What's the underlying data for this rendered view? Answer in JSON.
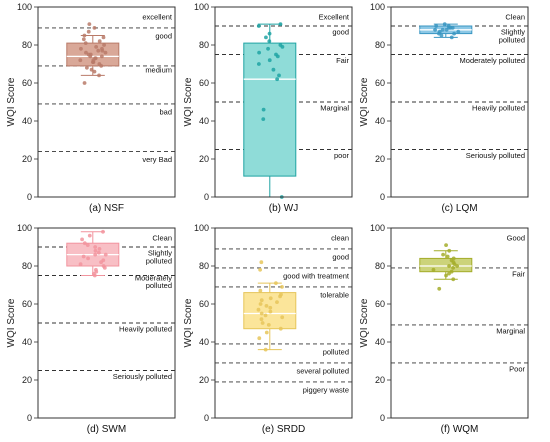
{
  "chart_data": [
    {
      "type": "box",
      "panel_label": "(a) NSF",
      "ylabel": "WQI Score",
      "ylim": [
        0,
        100
      ],
      "yticks": [
        0,
        20,
        40,
        60,
        80,
        100
      ],
      "color": "#b97a68",
      "fill": "#d9a898",
      "box": {
        "whisker_low": 64,
        "q1": 69,
        "median": 74,
        "q3": 81,
        "whisker_high": 85
      },
      "points": [
        60,
        64,
        66,
        67,
        68,
        69,
        70,
        71,
        71,
        72,
        72,
        73,
        73,
        74,
        74,
        75,
        75,
        76,
        76,
        77,
        77,
        78,
        78,
        79,
        80,
        81,
        82,
        83,
        84,
        85,
        87,
        89,
        91
      ],
      "thresholds": [
        89,
        69,
        49,
        24
      ],
      "bands": [
        {
          "label": "excellent",
          "y": 95
        },
        {
          "label": "good",
          "y": 85
        },
        {
          "label": "medium",
          "y": 67
        },
        {
          "label": "bad",
          "y": 45
        },
        {
          "label": "very Bad",
          "y": 20
        }
      ]
    },
    {
      "type": "box",
      "panel_label": "(b) WJ",
      "ylabel": "WQI Score",
      "ylim": [
        0,
        100
      ],
      "yticks": [
        0,
        20,
        40,
        60,
        80,
        100
      ],
      "color": "#1fa3a3",
      "fill": "#8fdcd8",
      "box": {
        "whisker_low": 0,
        "q1": 11,
        "median": 62,
        "q3": 81,
        "whisker_high": 91
      },
      "points": [
        0,
        41,
        46,
        62,
        64,
        67,
        70,
        72,
        74,
        75,
        76,
        78,
        79,
        80,
        82,
        84,
        86,
        90,
        91
      ],
      "thresholds": [
        90,
        75,
        50,
        25
      ],
      "bands": [
        {
          "label": "Excellent",
          "y": 95
        },
        {
          "label": "good",
          "y": 87
        },
        {
          "label": "Fair",
          "y": 72
        },
        {
          "label": "Marginal",
          "y": 47
        },
        {
          "label": "poor",
          "y": 22
        }
      ]
    },
    {
      "type": "box",
      "panel_label": "(c) LQM",
      "ylabel": "WQI Score",
      "ylim": [
        0,
        100
      ],
      "yticks": [
        0,
        20,
        40,
        60,
        80,
        100
      ],
      "color": "#3a96c2",
      "fill": "#8cc8e6",
      "box": {
        "whisker_low": 84,
        "q1": 86,
        "median": 88,
        "q3": 90,
        "whisker_high": 91
      },
      "points": [
        84,
        85,
        86,
        86,
        87,
        87,
        88,
        88,
        88,
        89,
        89,
        89,
        90,
        90,
        91
      ],
      "thresholds": [
        90,
        75,
        50,
        25
      ],
      "bands": [
        {
          "label": "Clean",
          "y": 95
        },
        {
          "label": "Slightly",
          "y": 87
        },
        {
          "label": "polluted",
          "y": 83
        },
        {
          "label": "Moderately polluted",
          "y": 72
        },
        {
          "label": "Heavily polluted",
          "y": 47
        },
        {
          "label": "Seriously polluted",
          "y": 22
        }
      ]
    },
    {
      "type": "box",
      "panel_label": "(d) SWM",
      "ylabel": "WQI Score",
      "ylim": [
        0,
        100
      ],
      "yticks": [
        0,
        20,
        40,
        60,
        80,
        100
      ],
      "color": "#f2949e",
      "fill": "#f8bfc5",
      "box": {
        "whisker_low": 75,
        "q1": 80,
        "median": 86,
        "q3": 92,
        "whisker_high": 98
      },
      "points": [
        75,
        76,
        77,
        78,
        79,
        80,
        81,
        82,
        83,
        84,
        85,
        86,
        86,
        87,
        88,
        89,
        90,
        91,
        92,
        94,
        96,
        98
      ],
      "thresholds": [
        90,
        75,
        50,
        25
      ],
      "bands": [
        {
          "label": "Clean",
          "y": 95
        },
        {
          "label": "Slightly",
          "y": 87
        },
        {
          "label": "polluted",
          "y": 83
        },
        {
          "label": "Moderately",
          "y": 74
        },
        {
          "label": "polluted",
          "y": 70
        },
        {
          "label": "Heavily polluted",
          "y": 47
        },
        {
          "label": "Seriously polluted",
          "y": 22
        }
      ]
    },
    {
      "type": "box",
      "panel_label": "(e) SRDD",
      "ylabel": "WQI Score",
      "ylim": [
        0,
        100
      ],
      "yticks": [
        0,
        20,
        40,
        60,
        80,
        100
      ],
      "color": "#e6c55a",
      "fill": "#fbe59a",
      "box": {
        "whisker_low": 36,
        "q1": 47,
        "median": 55,
        "q3": 66,
        "whisker_high": 71
      },
      "points": [
        36,
        42,
        45,
        47,
        49,
        50,
        52,
        53,
        54,
        55,
        56,
        57,
        58,
        59,
        60,
        61,
        62,
        63,
        64,
        65,
        67,
        69,
        71,
        78,
        82
      ],
      "thresholds": [
        89,
        79,
        69,
        39,
        29,
        19
      ],
      "bands": [
        {
          "label": "clean",
          "y": 95
        },
        {
          "label": "good",
          "y": 85
        },
        {
          "label": "good with treatment",
          "y": 75
        },
        {
          "label": "tolerable",
          "y": 65
        },
        {
          "label": "polluted",
          "y": 35
        },
        {
          "label": "several polluted",
          "y": 25
        },
        {
          "label": "piggery waste",
          "y": 15
        }
      ]
    },
    {
      "type": "box",
      "panel_label": "(f) WQM",
      "ylabel": "WQI Score",
      "ylim": [
        0,
        100
      ],
      "yticks": [
        0,
        20,
        40,
        60,
        80,
        100
      ],
      "color": "#a4ad2a",
      "fill": "#ccd37a",
      "box": {
        "whisker_low": 73,
        "q1": 77,
        "median": 80,
        "q3": 84,
        "whisker_high": 88
      },
      "points": [
        68,
        73,
        75,
        76,
        77,
        78,
        79,
        80,
        80,
        81,
        82,
        83,
        84,
        85,
        86,
        88,
        91
      ],
      "thresholds": [
        79,
        49,
        29
      ],
      "bands": [
        {
          "label": "Good",
          "y": 95
        },
        {
          "label": "Fair",
          "y": 76
        },
        {
          "label": "Marginal",
          "y": 46
        },
        {
          "label": "Poor",
          "y": 26
        }
      ]
    }
  ]
}
